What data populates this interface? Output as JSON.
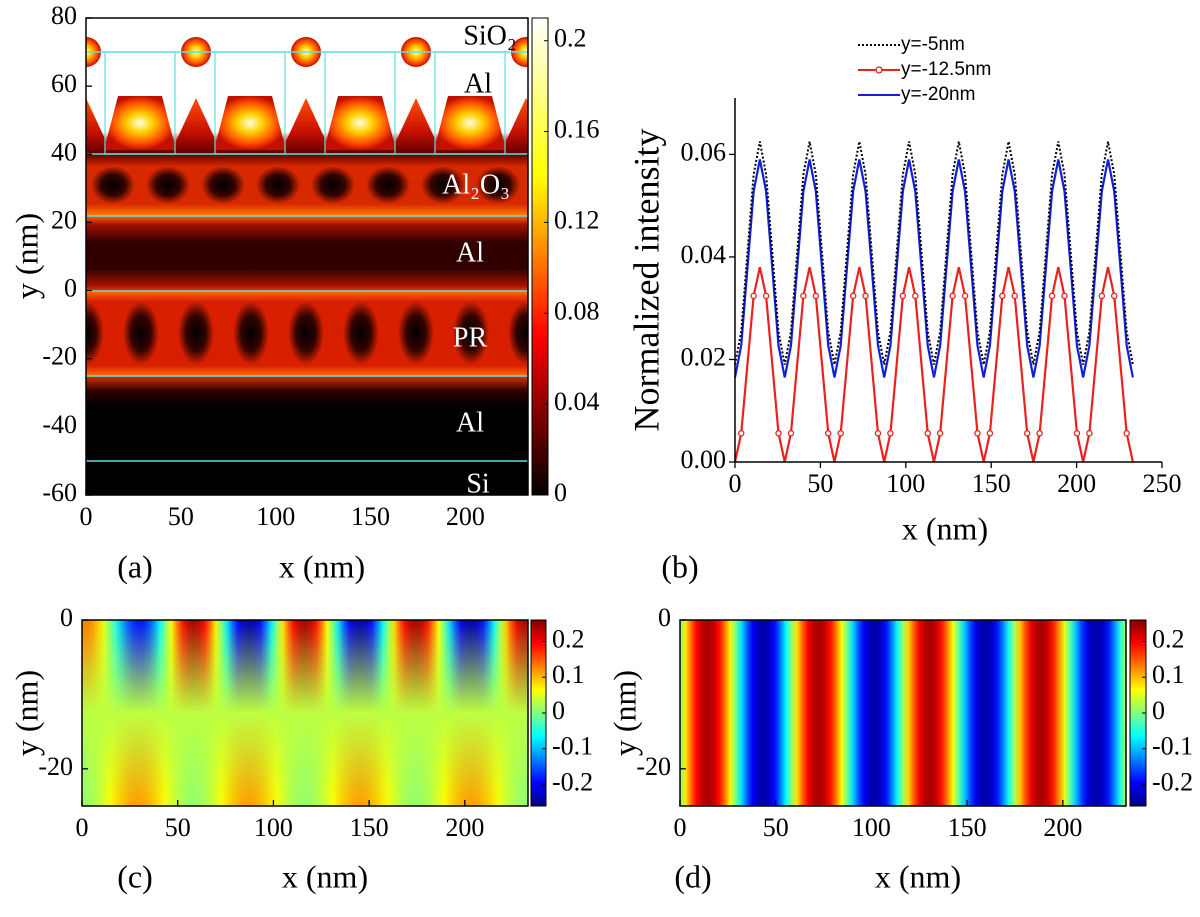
{
  "chart_data": [
    {
      "type": "heatmap",
      "panel_label": "(a)",
      "xlabel": "x (nm)",
      "ylabel": "y (nm)",
      "xlim": [
        0,
        233
      ],
      "ylim": [
        -60,
        80
      ],
      "xticks": [
        0,
        50,
        100,
        150,
        200
      ],
      "yticks": [
        -60,
        -40,
        -20,
        0,
        20,
        40,
        60,
        80
      ],
      "colormap": "hot",
      "colorbar": {
        "lim": [
          0,
          0.21
        ],
        "ticks": [
          0,
          0.04,
          0.08,
          0.12,
          0.16,
          0.2
        ]
      },
      "annotations": [
        "SiO₂",
        "Al",
        "Al₂O₃",
        "Al",
        "PR",
        "Al",
        "Si"
      ]
    },
    {
      "type": "line",
      "panel_label": "(b)",
      "xlabel": "x (nm)",
      "ylabel": "Normalized intensity",
      "xlim": [
        0,
        250
      ],
      "ylim": [
        0,
        0.071
      ],
      "xticks": [
        0,
        50,
        100,
        150,
        200,
        250
      ],
      "yticks": [
        {
          "value": 0,
          "label": "0.00"
        },
        {
          "value": 0.02,
          "label": "0.02"
        },
        {
          "value": 0.04,
          "label": "0.04"
        },
        {
          "value": 0.06,
          "label": "0.06"
        }
      ],
      "x": [
        0,
        3.64,
        7.28,
        10.92,
        14.56,
        18.2,
        21.84,
        25.48,
        29.12,
        32.76,
        36.4,
        40.04,
        43.68,
        47.32,
        50.96,
        54.6,
        58.24,
        61.88,
        65.52,
        69.16,
        72.8,
        76.44,
        80.08,
        83.72,
        87.36,
        91,
        94.64,
        98.28,
        101.92,
        105.56,
        109.2,
        112.84,
        116.48,
        120.12,
        123.76,
        127.4,
        131.04,
        134.68,
        138.32,
        141.96,
        145.6,
        149.24,
        152.88,
        156.52,
        160.16,
        163.8,
        167.44,
        171.08,
        174.72,
        178.36,
        182,
        185.64,
        189.28,
        192.92,
        196.56,
        200.2,
        203.84,
        207.48,
        211.12,
        214.76,
        218.4,
        222.04,
        225.68,
        229.32,
        232.96
      ],
      "series": [
        {
          "name": "y=-5nm",
          "color": "#000000",
          "style": "dotted",
          "values": [
            0.019,
            0.0254,
            0.0408,
            0.0561,
            0.0625,
            0.0561,
            0.0408,
            0.0254,
            0.019,
            0.0254,
            0.0408,
            0.0561,
            0.0625,
            0.0561,
            0.0408,
            0.0254,
            0.019,
            0.0254,
            0.0408,
            0.0561,
            0.0625,
            0.0561,
            0.0408,
            0.0254,
            0.019,
            0.0254,
            0.0408,
            0.0561,
            0.0625,
            0.0561,
            0.0408,
            0.0254,
            0.019,
            0.0254,
            0.0408,
            0.0561,
            0.0625,
            0.0561,
            0.0408,
            0.0254,
            0.019,
            0.0254,
            0.0408,
            0.0561,
            0.0625,
            0.0561,
            0.0408,
            0.0254,
            0.019,
            0.0254,
            0.0408,
            0.0561,
            0.0625,
            0.0561,
            0.0408,
            0.0254,
            0.019,
            0.0254,
            0.0408,
            0.0561,
            0.0625,
            0.0561,
            0.0408,
            0.0254,
            0.019
          ]
        },
        {
          "name": "y=-12.5nm",
          "color": "#e8231f",
          "marker": "circle",
          "values": [
            0,
            0.0056,
            0.019,
            0.0324,
            0.038,
            0.0324,
            0.019,
            0.0056,
            0,
            0.0056,
            0.019,
            0.0324,
            0.038,
            0.0324,
            0.019,
            0.0056,
            0,
            0.0056,
            0.019,
            0.0324,
            0.038,
            0.0324,
            0.019,
            0.0056,
            0,
            0.0056,
            0.019,
            0.0324,
            0.038,
            0.0324,
            0.019,
            0.0056,
            0,
            0.0056,
            0.019,
            0.0324,
            0.038,
            0.0324,
            0.019,
            0.0056,
            0,
            0.0056,
            0.019,
            0.0324,
            0.038,
            0.0324,
            0.019,
            0.0056,
            0,
            0.0056,
            0.019,
            0.0324,
            0.038,
            0.0324,
            0.019,
            0.0056,
            0,
            0.0056,
            0.019,
            0.0324,
            0.038,
            0.0324,
            0.019,
            0.0056,
            0
          ]
        },
        {
          "name": "y=-20nm",
          "color": "#1020d8",
          "values": [
            0.0165,
            0.0227,
            0.0378,
            0.0528,
            0.059,
            0.0528,
            0.0378,
            0.0227,
            0.0165,
            0.0227,
            0.0378,
            0.0528,
            0.059,
            0.0528,
            0.0378,
            0.0227,
            0.0165,
            0.0227,
            0.0378,
            0.0528,
            0.059,
            0.0528,
            0.0378,
            0.0227,
            0.0165,
            0.0227,
            0.0378,
            0.0528,
            0.059,
            0.0528,
            0.0378,
            0.0227,
            0.0165,
            0.0227,
            0.0378,
            0.0528,
            0.059,
            0.0528,
            0.0378,
            0.0227,
            0.0165,
            0.0227,
            0.0378,
            0.0528,
            0.059,
            0.0528,
            0.0378,
            0.0227,
            0.0165,
            0.0227,
            0.0378,
            0.0528,
            0.059,
            0.0528,
            0.0378,
            0.0227,
            0.0165,
            0.0227,
            0.0378,
            0.0528,
            0.059,
            0.0528,
            0.0378,
            0.0227,
            0.0165
          ]
        }
      ]
    },
    {
      "type": "heatmap",
      "panel_label": "(c)",
      "xlabel": "x (nm)",
      "ylabel": "y (nm)",
      "xlim": [
        0,
        233
      ],
      "ylim": [
        -25,
        0
      ],
      "xticks": [
        0,
        50,
        100,
        150,
        200
      ],
      "yticks": [
        -20,
        0
      ],
      "colormap": "jet",
      "colorbar": {
        "lim": [
          -0.26,
          0.26
        ],
        "ticks": [
          -0.2,
          -0.1,
          0,
          0.1,
          0.2
        ]
      }
    },
    {
      "type": "heatmap",
      "panel_label": "(d)",
      "xlabel": "x (nm)",
      "ylabel": "y (nm)",
      "xlim": [
        0,
        233
      ],
      "ylim": [
        -25,
        0
      ],
      "xticks": [
        0,
        50,
        100,
        150,
        200
      ],
      "yticks": [
        -20,
        0
      ],
      "colormap": "jet",
      "colorbar": {
        "lim": [
          -0.26,
          0.26
        ],
        "ticks": [
          -0.2,
          -0.1,
          0,
          0.1,
          0.2
        ]
      }
    }
  ]
}
